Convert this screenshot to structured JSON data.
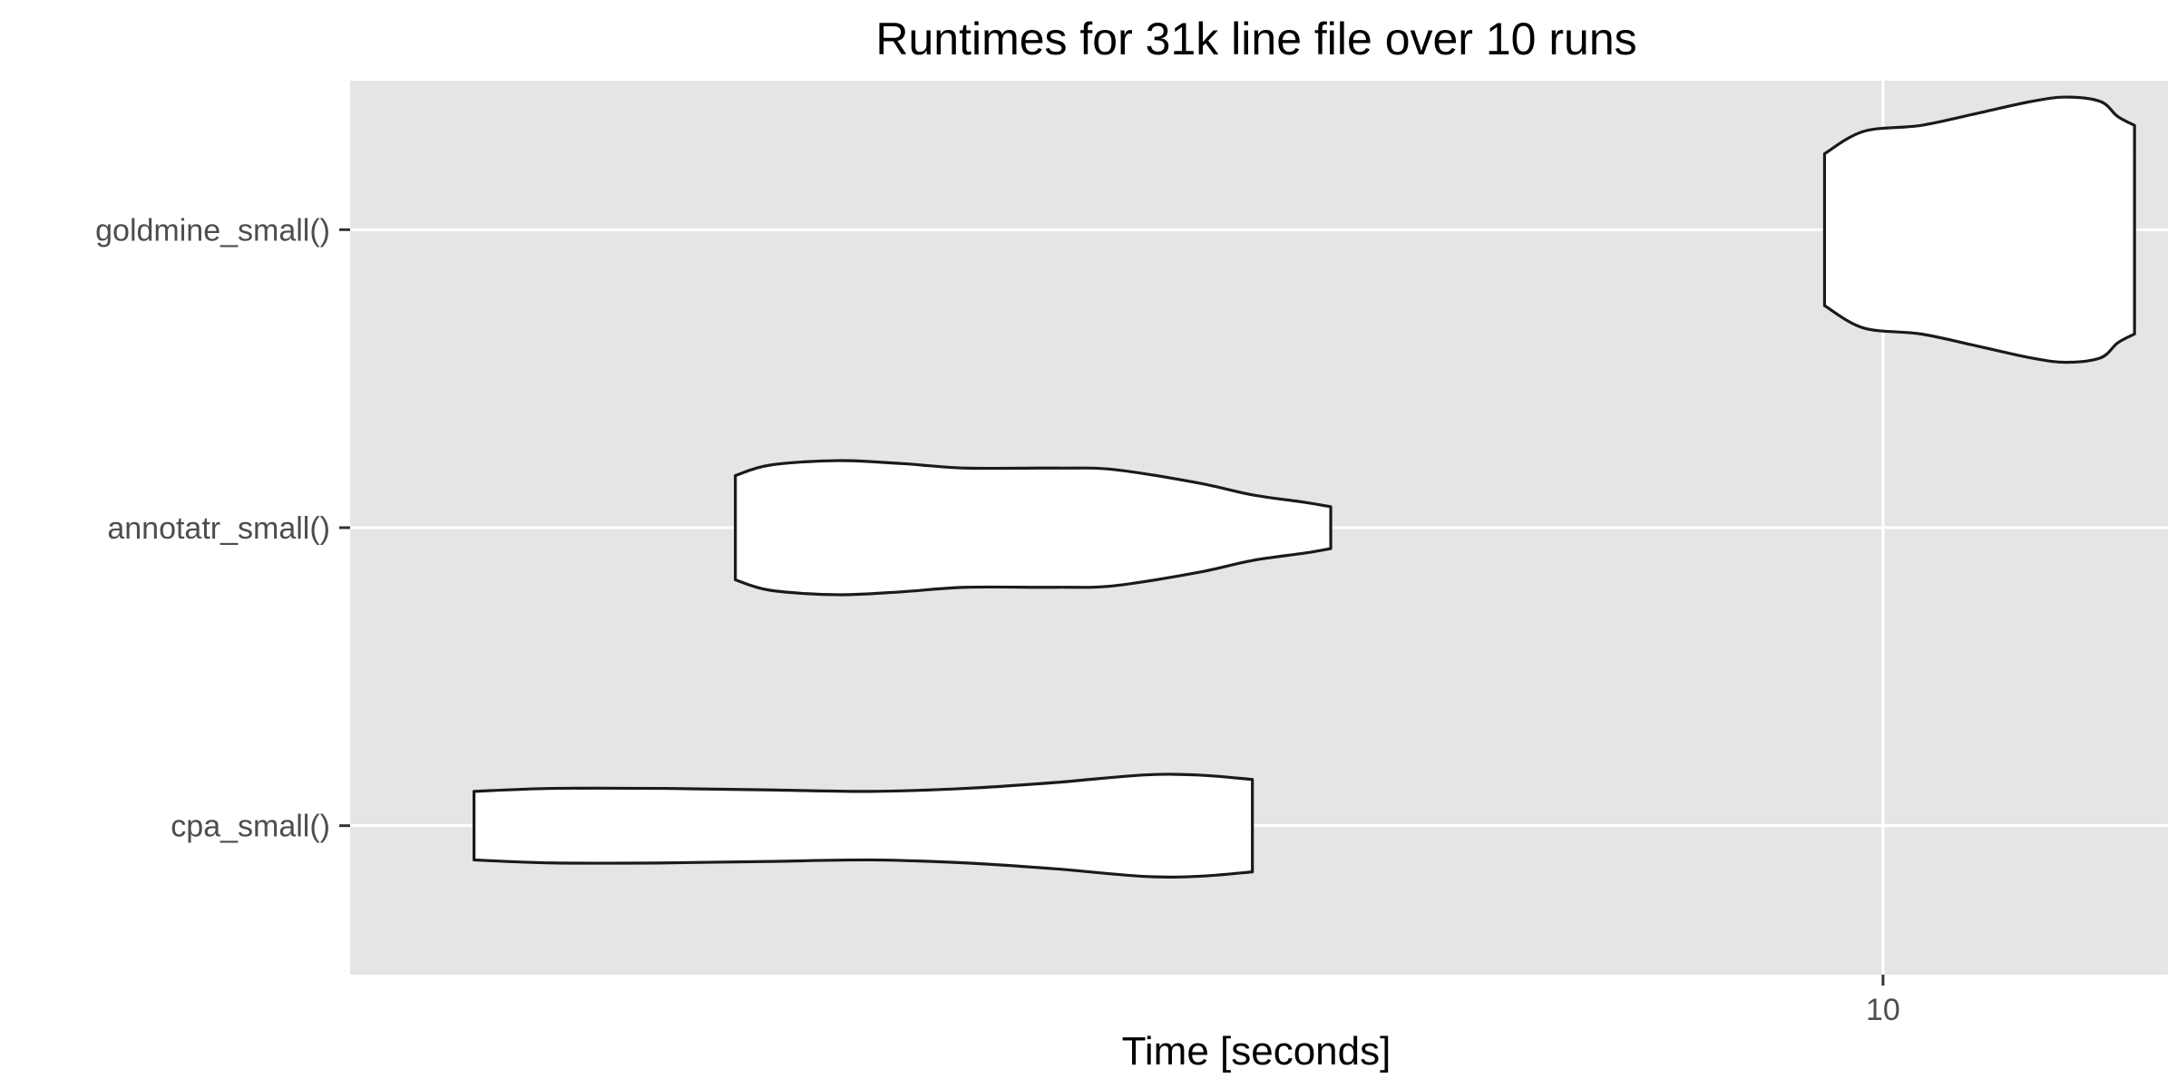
{
  "chart_data": {
    "type": "violin",
    "title": "Runtimes for 31k line file over 10 runs",
    "xlabel": "Time [seconds]",
    "ylabel": "",
    "x_scale": "log10",
    "xlim": [
      4.5,
      11.6
    ],
    "x_ticks": [
      {
        "value": 10,
        "label": "10"
      }
    ],
    "categories": [
      "goldmine_small()",
      "annotatr_small()",
      "cpa_small()"
    ],
    "series": [
      {
        "category": "goldmine_small()",
        "min": 9.7,
        "max": 11.4,
        "profile": [
          [
            9.7,
            0.51
          ],
          [
            9.9,
            0.66
          ],
          [
            10.2,
            0.7
          ],
          [
            10.5,
            0.78
          ],
          [
            10.8,
            0.86
          ],
          [
            11.0,
            0.89
          ],
          [
            11.2,
            0.86
          ],
          [
            11.3,
            0.76
          ],
          [
            11.4,
            0.7
          ]
        ]
      },
      {
        "category": "annotatr_small()",
        "min": 5.5,
        "max": 7.5,
        "profile": [
          [
            5.5,
            0.35
          ],
          [
            5.6,
            0.42
          ],
          [
            5.8,
            0.45
          ],
          [
            6.0,
            0.43
          ],
          [
            6.2,
            0.4
          ],
          [
            6.5,
            0.4
          ],
          [
            6.7,
            0.39
          ],
          [
            7.0,
            0.3
          ],
          [
            7.2,
            0.22
          ],
          [
            7.4,
            0.17
          ],
          [
            7.5,
            0.14
          ]
        ]
      },
      {
        "category": "cpa_small()",
        "min": 4.8,
        "max": 7.2,
        "profile": [
          [
            4.8,
            0.23
          ],
          [
            5.0,
            0.25
          ],
          [
            5.3,
            0.25
          ],
          [
            5.6,
            0.24
          ],
          [
            5.9,
            0.23
          ],
          [
            6.2,
            0.25
          ],
          [
            6.5,
            0.29
          ],
          [
            6.8,
            0.34
          ],
          [
            7.0,
            0.34
          ],
          [
            7.2,
            0.31
          ]
        ]
      }
    ],
    "grid": true,
    "legend": "none",
    "colors": {
      "panel_background": "#e5e5e5",
      "grid_line": "#ffffff",
      "violin_fill": "#ffffff",
      "violin_outline": "#1a1a1a",
      "tick_mark": "#333333",
      "tick_text": "#4d4d4d"
    }
  }
}
